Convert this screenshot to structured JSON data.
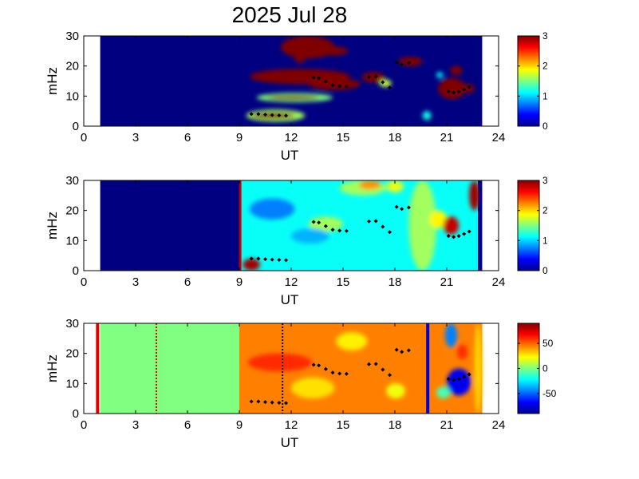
{
  "title": "2025 Jul 28",
  "chart_data": [
    {
      "type": "heatmap",
      "xlabel": "UT",
      "ylabel": "mHz",
      "xlim": [
        0,
        24
      ],
      "ylim": [
        0,
        30
      ],
      "xticks": [
        "0",
        "3",
        "6",
        "9",
        "12",
        "15",
        "18",
        "21",
        "24"
      ],
      "yticks": [
        "0",
        "10",
        "20",
        "30"
      ],
      "colorbar": {
        "range": [
          0,
          3
        ],
        "ticks": [
          "0",
          "1",
          "2",
          "3"
        ]
      },
      "data_extent_ut": [
        0.95,
        23.05
      ],
      "background_level": 0,
      "blobs": [
        {
          "x": [
            9.4,
            12.8
          ],
          "y": [
            1.5,
            5.5
          ],
          "level": 1.6
        },
        {
          "x": [
            9.7,
            12.2
          ],
          "y": [
            2.5,
            4.5
          ],
          "level": 3
        },
        {
          "x": [
            9.6,
            15.4
          ],
          "y": [
            14,
            19
          ],
          "level": 3
        },
        {
          "x": [
            13.0,
            16.0
          ],
          "y": [
            12,
            16
          ],
          "level": 3
        },
        {
          "x": [
            10.0,
            14.4
          ],
          "y": [
            8,
            11
          ],
          "level": 1.5
        },
        {
          "x": [
            10.6,
            13.6
          ],
          "y": [
            8.8,
            10.2
          ],
          "level": 3
        },
        {
          "x": [
            11.4,
            14.5
          ],
          "y": [
            22.5,
            30
          ],
          "level": 3
        },
        {
          "x": [
            13.4,
            15.3
          ],
          "y": [
            23.5,
            26.5
          ],
          "level": 3
        },
        {
          "x": [
            12.2,
            12.8
          ],
          "y": [
            21,
            23.5
          ],
          "level": 3
        },
        {
          "x": [
            16.1,
            17.4
          ],
          "y": [
            14.5,
            18
          ],
          "level": 3
        },
        {
          "x": [
            17.1,
            17.8
          ],
          "y": [
            13,
            15.5
          ],
          "level": 1.7
        },
        {
          "x": [
            18.2,
            19.6
          ],
          "y": [
            20,
            23
          ],
          "level": 3
        },
        {
          "x": [
            20.5,
            22.1
          ],
          "y": [
            9,
            16
          ],
          "level": 3
        },
        {
          "x": [
            21.2,
            21.9
          ],
          "y": [
            17,
            20
          ],
          "level": 3
        },
        {
          "x": [
            21.9,
            22.6
          ],
          "y": [
            11,
            14
          ],
          "level": 3
        },
        {
          "x": [
            19.6,
            20.1
          ],
          "y": [
            2,
            5
          ],
          "level": 1.2
        },
        {
          "x": [
            20.4,
            20.8
          ],
          "y": [
            16,
            18
          ],
          "level": 1.1
        }
      ],
      "markers": [
        {
          "x": 9.7,
          "y": 4.0
        },
        {
          "x": 10.1,
          "y": 4.0
        },
        {
          "x": 10.5,
          "y": 3.8
        },
        {
          "x": 10.9,
          "y": 3.7
        },
        {
          "x": 11.3,
          "y": 3.6
        },
        {
          "x": 11.7,
          "y": 3.5
        },
        {
          "x": 13.3,
          "y": 16.2
        },
        {
          "x": 13.6,
          "y": 16.0
        },
        {
          "x": 14.0,
          "y": 14.8
        },
        {
          "x": 14.4,
          "y": 13.6
        },
        {
          "x": 14.8,
          "y": 13.3
        },
        {
          "x": 15.2,
          "y": 13.2
        },
        {
          "x": 16.5,
          "y": 16.4
        },
        {
          "x": 16.9,
          "y": 16.5
        },
        {
          "x": 17.3,
          "y": 14.6
        },
        {
          "x": 17.7,
          "y": 12.8
        },
        {
          "x": 18.1,
          "y": 21.2
        },
        {
          "x": 18.4,
          "y": 20.5
        },
        {
          "x": 18.8,
          "y": 21.0
        },
        {
          "x": 21.1,
          "y": 11.5
        },
        {
          "x": 21.4,
          "y": 11.2
        },
        {
          "x": 21.7,
          "y": 11.5
        },
        {
          "x": 22.0,
          "y": 12.2
        },
        {
          "x": 22.3,
          "y": 13.0
        }
      ]
    },
    {
      "type": "heatmap",
      "xlabel": "UT",
      "ylabel": "mHz",
      "xlim": [
        0,
        24
      ],
      "ylim": [
        0,
        30
      ],
      "xticks": [
        "0",
        "3",
        "6",
        "9",
        "12",
        "15",
        "18",
        "21",
        "24"
      ],
      "yticks": [
        "0",
        "10",
        "20",
        "30"
      ],
      "colorbar": {
        "range": [
          0,
          3
        ],
        "ticks": [
          "0",
          "1",
          "2",
          "3"
        ]
      },
      "data_extent_ut": [
        0.95,
        23.05
      ],
      "background_level": 0,
      "active_ut": [
        9.05,
        22.8
      ],
      "active_level": 1.15,
      "edge_lines": [
        {
          "x": 9.05,
          "color": "#c00000"
        },
        {
          "x": 22.95,
          "color": "#00008f"
        }
      ],
      "blobs": [
        {
          "x": [
            13.0,
            15.0
          ],
          "y": [
            13,
            18
          ],
          "level": 1.6
        },
        {
          "x": [
            14.8,
            17.5
          ],
          "y": [
            25,
            30
          ],
          "level": 1.6
        },
        {
          "x": [
            15.9,
            17.2
          ],
          "y": [
            27,
            30
          ],
          "level": 2.2
        },
        {
          "x": [
            17.5,
            18.5
          ],
          "y": [
            26,
            30
          ],
          "level": 1.8
        },
        {
          "x": [
            18.8,
            20.4
          ],
          "y": [
            0,
            30
          ],
          "level": 1.6
        },
        {
          "x": [
            20.0,
            21.0
          ],
          "y": [
            14,
            20
          ],
          "level": 1.9
        },
        {
          "x": [
            20.8,
            21.7
          ],
          "y": [
            12,
            18
          ],
          "level": 2.8
        },
        {
          "x": [
            22.3,
            22.9
          ],
          "y": [
            20,
            30
          ],
          "level": 2.9
        },
        {
          "x": [
            9.6,
            12.2
          ],
          "y": [
            17,
            24
          ],
          "level": 0.75
        },
        {
          "x": [
            12.0,
            14.2
          ],
          "y": [
            9,
            14
          ],
          "level": 0.9
        },
        {
          "x": [
            9.2,
            10.2
          ],
          "y": [
            0,
            4
          ],
          "level": 2.9
        }
      ],
      "markers": [
        {
          "x": 9.7,
          "y": 4.0
        },
        {
          "x": 10.1,
          "y": 4.0
        },
        {
          "x": 10.5,
          "y": 3.8
        },
        {
          "x": 10.9,
          "y": 3.7
        },
        {
          "x": 11.3,
          "y": 3.6
        },
        {
          "x": 11.7,
          "y": 3.5
        },
        {
          "x": 13.3,
          "y": 16.2
        },
        {
          "x": 13.6,
          "y": 16.0
        },
        {
          "x": 14.0,
          "y": 14.8
        },
        {
          "x": 14.4,
          "y": 13.6
        },
        {
          "x": 14.8,
          "y": 13.3
        },
        {
          "x": 15.2,
          "y": 13.2
        },
        {
          "x": 16.5,
          "y": 16.4
        },
        {
          "x": 16.9,
          "y": 16.5
        },
        {
          "x": 17.3,
          "y": 14.6
        },
        {
          "x": 17.7,
          "y": 12.8
        },
        {
          "x": 18.1,
          "y": 21.2
        },
        {
          "x": 18.4,
          "y": 20.5
        },
        {
          "x": 18.8,
          "y": 21.0
        },
        {
          "x": 21.1,
          "y": 11.5
        },
        {
          "x": 21.4,
          "y": 11.2
        },
        {
          "x": 21.7,
          "y": 11.5
        },
        {
          "x": 22.0,
          "y": 12.2
        },
        {
          "x": 22.3,
          "y": 13.0
        }
      ]
    },
    {
      "type": "heatmap",
      "xlabel": "UT",
      "ylabel": "mHz",
      "xlim": [
        0,
        24
      ],
      "ylim": [
        0,
        30
      ],
      "xticks": [
        "0",
        "3",
        "6",
        "9",
        "12",
        "15",
        "18",
        "21",
        "24"
      ],
      "yticks": [
        "0",
        "10",
        "20",
        "30"
      ],
      "colorbar": {
        "range": [
          -90,
          90
        ],
        "ticks": [
          "50",
          "0",
          "-50"
        ],
        "tick_values": [
          50,
          0,
          -50
        ]
      },
      "data_extent_ut": [
        0.95,
        23.05
      ],
      "background_level": 0,
      "active_ut": [
        9.0,
        23.05
      ],
      "active_level": 45,
      "vlines": [
        {
          "x": 0.8,
          "color": "#e00000",
          "style": "solid"
        },
        {
          "x": 4.2,
          "color": "#e00000",
          "style": "dotted"
        },
        {
          "x": 11.5,
          "color": "#000000",
          "style": "dotted"
        },
        {
          "x": 19.9,
          "color": "#0000d0",
          "style": "solid"
        }
      ],
      "blobs": [
        {
          "x": [
            9.5,
            13.2
          ],
          "y": [
            14,
            20
          ],
          "level": 60
        },
        {
          "x": [
            14.6,
            16.4
          ],
          "y": [
            21,
            27
          ],
          "level": 25
        },
        {
          "x": [
            12.0,
            14.5
          ],
          "y": [
            5,
            12
          ],
          "level": 28
        },
        {
          "x": [
            17.5,
            18.6
          ],
          "y": [
            5,
            10
          ],
          "level": 20
        },
        {
          "x": [
            20.4,
            21.2
          ],
          "y": [
            5,
            9
          ],
          "level": -10
        },
        {
          "x": [
            21.0,
            22.4
          ],
          "y": [
            6,
            15
          ],
          "level": -70
        },
        {
          "x": [
            20.9,
            21.6
          ],
          "y": [
            22,
            30
          ],
          "level": -45
        },
        {
          "x": [
            21.6,
            22.2
          ],
          "y": [
            18,
            23
          ],
          "level": 60
        },
        {
          "x": [
            22.6,
            23.05
          ],
          "y": [
            0,
            30
          ],
          "level": 30
        }
      ],
      "markers": [
        {
          "x": 9.7,
          "y": 4.0
        },
        {
          "x": 10.1,
          "y": 4.0
        },
        {
          "x": 10.5,
          "y": 3.8
        },
        {
          "x": 10.9,
          "y": 3.7
        },
        {
          "x": 11.3,
          "y": 3.6
        },
        {
          "x": 11.7,
          "y": 3.5
        },
        {
          "x": 13.3,
          "y": 16.2
        },
        {
          "x": 13.6,
          "y": 16.0
        },
        {
          "x": 14.0,
          "y": 14.8
        },
        {
          "x": 14.4,
          "y": 13.6
        },
        {
          "x": 14.8,
          "y": 13.3
        },
        {
          "x": 15.2,
          "y": 13.2
        },
        {
          "x": 16.5,
          "y": 16.4
        },
        {
          "x": 16.9,
          "y": 16.5
        },
        {
          "x": 17.3,
          "y": 14.6
        },
        {
          "x": 17.7,
          "y": 12.8
        },
        {
          "x": 18.1,
          "y": 21.2
        },
        {
          "x": 18.4,
          "y": 20.5
        },
        {
          "x": 18.8,
          "y": 21.0
        },
        {
          "x": 21.1,
          "y": 11.5
        },
        {
          "x": 21.4,
          "y": 11.2
        },
        {
          "x": 21.7,
          "y": 11.5
        },
        {
          "x": 22.0,
          "y": 12.2
        },
        {
          "x": 22.3,
          "y": 13.0
        }
      ]
    }
  ]
}
